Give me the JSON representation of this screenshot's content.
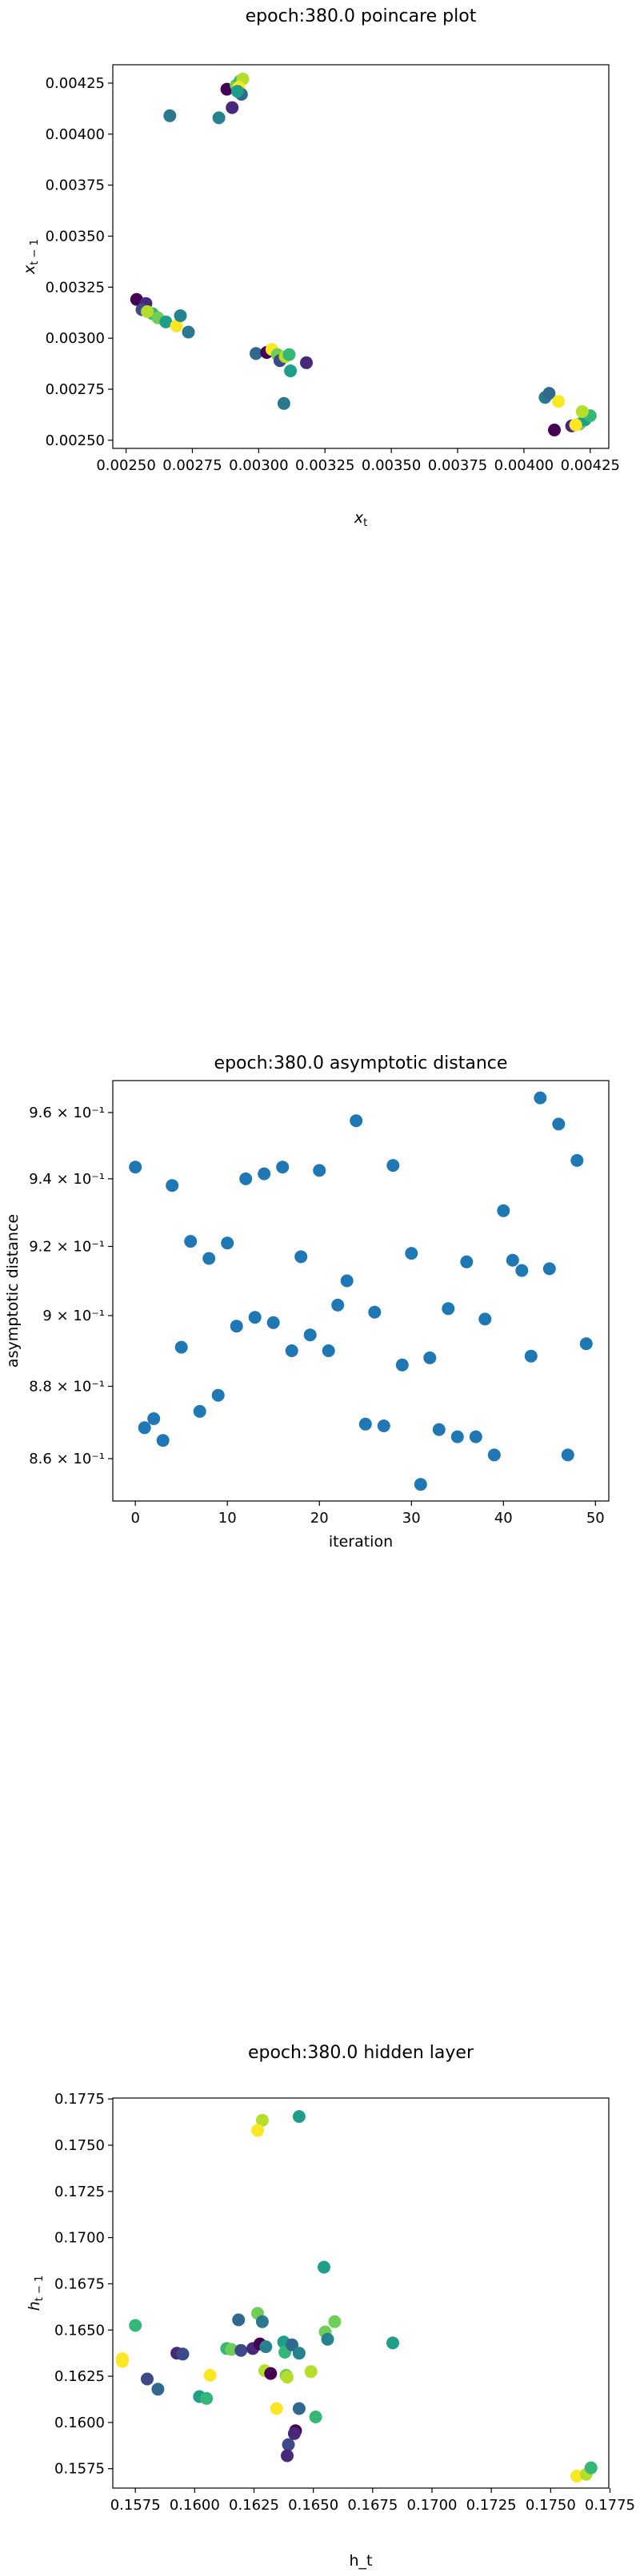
{
  "chart_data": [
    {
      "type": "scatter",
      "title": "epoch:380.0 poincare plot",
      "xlabel": "x_t",
      "ylabel": "x_{t-1}",
      "xlim": [
        0.00245,
        0.00432
      ],
      "ylim": [
        0.00246,
        0.00434
      ],
      "x_ticks": [
        0.0025,
        0.00275,
        0.003,
        0.00325,
        0.0035,
        0.00375,
        0.004,
        0.00425
      ],
      "x_tick_labels": [
        "0.00250",
        "0.00275",
        "0.00300",
        "0.00325",
        "0.00350",
        "0.00375",
        "0.00400",
        "0.00425"
      ],
      "y_ticks": [
        0.0025,
        0.00275,
        0.003,
        0.00325,
        0.0035,
        0.00375,
        0.004,
        0.00425
      ],
      "y_tick_labels": [
        "0.00250",
        "0.00275",
        "0.00300",
        "0.00325",
        "0.00350",
        "0.00375",
        "0.00400",
        "0.00425"
      ],
      "grid": false,
      "points": [
        {
          "x": 0.00254,
          "y": 0.00319,
          "color": "#440154"
        },
        {
          "x": 0.002575,
          "y": 0.00317,
          "color": "#482878"
        },
        {
          "x": 0.00256,
          "y": 0.00314,
          "color": "#3e4989"
        },
        {
          "x": 0.0026,
          "y": 0.00312,
          "color": "#35b779"
        },
        {
          "x": 0.00262,
          "y": 0.0031,
          "color": "#6ece58"
        },
        {
          "x": 0.00265,
          "y": 0.00308,
          "color": "#1f9e89"
        },
        {
          "x": 0.00258,
          "y": 0.00313,
          "color": "#b5de2b"
        },
        {
          "x": 0.00269,
          "y": 0.00306,
          "color": "#fde725"
        },
        {
          "x": 0.002705,
          "y": 0.00311,
          "color": "#26828e"
        },
        {
          "x": 0.002735,
          "y": 0.00303,
          "color": "#2a788e"
        },
        {
          "x": 0.002665,
          "y": 0.00409,
          "color": "#2a788e"
        },
        {
          "x": 0.00285,
          "y": 0.00408,
          "color": "#26828e"
        },
        {
          "x": 0.00288,
          "y": 0.00422,
          "color": "#440154"
        },
        {
          "x": 0.0029,
          "y": 0.00413,
          "color": "#482878"
        },
        {
          "x": 0.002915,
          "y": 0.00424,
          "color": "#6ece58"
        },
        {
          "x": 0.00293,
          "y": 0.00426,
          "color": "#35b779"
        },
        {
          "x": 0.00294,
          "y": 0.00427,
          "color": "#b5de2b"
        },
        {
          "x": 0.002925,
          "y": 0.00423,
          "color": "#fde725"
        },
        {
          "x": 0.002935,
          "y": 0.004195,
          "color": "#31688e"
        },
        {
          "x": 0.00292,
          "y": 0.00421,
          "color": "#1f9e89"
        },
        {
          "x": 0.00299,
          "y": 0.002925,
          "color": "#31688e"
        },
        {
          "x": 0.00303,
          "y": 0.00293,
          "color": "#440154"
        },
        {
          "x": 0.00305,
          "y": 0.002945,
          "color": "#fde725"
        },
        {
          "x": 0.00307,
          "y": 0.00292,
          "color": "#6ece58"
        },
        {
          "x": 0.00308,
          "y": 0.00289,
          "color": "#3e4989"
        },
        {
          "x": 0.0031,
          "y": 0.00291,
          "color": "#b5de2b"
        },
        {
          "x": 0.003115,
          "y": 0.00292,
          "color": "#35b779"
        },
        {
          "x": 0.00312,
          "y": 0.00284,
          "color": "#1f9e89"
        },
        {
          "x": 0.00318,
          "y": 0.00288,
          "color": "#482878"
        },
        {
          "x": 0.003095,
          "y": 0.00268,
          "color": "#2a788e"
        },
        {
          "x": 0.00408,
          "y": 0.00271,
          "color": "#2a788e"
        },
        {
          "x": 0.004095,
          "y": 0.00273,
          "color": "#31688e"
        },
        {
          "x": 0.00413,
          "y": 0.00269,
          "color": "#fde725"
        },
        {
          "x": 0.004115,
          "y": 0.00255,
          "color": "#440154"
        },
        {
          "x": 0.00418,
          "y": 0.00257,
          "color": "#482878"
        },
        {
          "x": 0.00421,
          "y": 0.00258,
          "color": "#6ece58"
        },
        {
          "x": 0.00423,
          "y": 0.0026,
          "color": "#1f9e89"
        },
        {
          "x": 0.00425,
          "y": 0.00262,
          "color": "#35b779"
        },
        {
          "x": 0.00422,
          "y": 0.00264,
          "color": "#b5de2b"
        },
        {
          "x": 0.004195,
          "y": 0.002575,
          "color": "#fde725"
        }
      ]
    },
    {
      "type": "scatter",
      "title": "epoch:380.0 asymptotic distance",
      "xlabel": "iteration",
      "ylabel": "asymptotic distance",
      "xlim": [
        -2.45,
        51.45
      ],
      "yscale": "log",
      "ylim": [
        0.8485,
        0.9698
      ],
      "x_ticks": [
        0,
        10,
        20,
        30,
        40,
        50
      ],
      "x_tick_labels": [
        "0",
        "10",
        "20",
        "30",
        "40",
        "50"
      ],
      "y_ticks": [
        0.86,
        0.88,
        0.9,
        0.92,
        0.94,
        0.96
      ],
      "y_tick_labels": [
        "8.6 × 10⁻¹",
        "8.8 × 10⁻¹",
        "9 × 10⁻¹",
        "9.2 × 10⁻¹",
        "9.4 × 10⁻¹",
        "9.6 × 10⁻¹"
      ],
      "grid": false,
      "color": "#1f77b4",
      "x": [
        0,
        1,
        2,
        3,
        4,
        5,
        6,
        7,
        8,
        9,
        10,
        11,
        12,
        13,
        14,
        15,
        16,
        17,
        18,
        19,
        20,
        21,
        22,
        23,
        24,
        25,
        26,
        27,
        28,
        29,
        30,
        31,
        32,
        33,
        34,
        35,
        36,
        37,
        38,
        39,
        40,
        41,
        42,
        43,
        44,
        45,
        46,
        47,
        48,
        49
      ],
      "values": [
        0.9435,
        0.8685,
        0.871,
        0.865,
        0.938,
        0.891,
        0.9215,
        0.873,
        0.9165,
        0.8775,
        0.921,
        0.897,
        0.94,
        0.8995,
        0.9415,
        0.898,
        0.9435,
        0.89,
        0.917,
        0.8945,
        0.9425,
        0.89,
        0.903,
        0.91,
        0.9575,
        0.8695,
        0.901,
        0.869,
        0.944,
        0.886,
        0.918,
        0.853,
        0.888,
        0.868,
        0.902,
        0.866,
        0.9155,
        0.866,
        0.899,
        0.861,
        0.9305,
        0.916,
        0.913,
        0.8885,
        0.9645,
        0.9135,
        0.9565,
        0.861,
        0.9455,
        0.892
      ]
    },
    {
      "type": "scatter",
      "title": "epoch:380.0 hidden layer",
      "xlabel": "h_t",
      "ylabel": "h_{t-1}",
      "xlim": [
        0.15655,
        0.17745
      ],
      "ylim": [
        0.15645,
        0.17755
      ],
      "x_ticks": [
        0.1575,
        0.16,
        0.1625,
        0.165,
        0.1675,
        0.17,
        0.1725,
        0.175,
        0.1775
      ],
      "x_tick_labels": [
        "0.1575",
        "0.1600",
        "0.1625",
        "0.1650",
        "0.1675",
        "0.1700",
        "0.1725",
        "0.1750",
        "0.1775"
      ],
      "y_ticks": [
        0.1575,
        0.16,
        0.1625,
        0.165,
        0.1675,
        0.17,
        0.1725,
        0.175,
        0.1775
      ],
      "y_tick_labels": [
        "0.1575",
        "0.1600",
        "0.1625",
        "0.1650",
        "0.1675",
        "0.1700",
        "0.1725",
        "0.1750",
        "0.1775"
      ],
      "grid": false,
      "points": [
        {
          "x": 0.15695,
          "y": 0.16345,
          "color": "#fde725"
        },
        {
          "x": 0.15695,
          "y": 0.1633,
          "color": "#fde725"
        },
        {
          "x": 0.1575,
          "y": 0.16525,
          "color": "#35b779"
        },
        {
          "x": 0.158,
          "y": 0.16235,
          "color": "#3e4989"
        },
        {
          "x": 0.15845,
          "y": 0.1618,
          "color": "#31688e"
        },
        {
          "x": 0.15925,
          "y": 0.16375,
          "color": "#482878"
        },
        {
          "x": 0.1595,
          "y": 0.1637,
          "color": "#3e4989"
        },
        {
          "x": 0.1602,
          "y": 0.1614,
          "color": "#1f9e89"
        },
        {
          "x": 0.1605,
          "y": 0.1613,
          "color": "#35b779"
        },
        {
          "x": 0.16065,
          "y": 0.16255,
          "color": "#fde725"
        },
        {
          "x": 0.16135,
          "y": 0.164,
          "color": "#35b779"
        },
        {
          "x": 0.16155,
          "y": 0.16395,
          "color": "#6ece58"
        },
        {
          "x": 0.16185,
          "y": 0.16555,
          "color": "#31688e"
        },
        {
          "x": 0.16195,
          "y": 0.1639,
          "color": "#3e4989"
        },
        {
          "x": 0.16245,
          "y": 0.164,
          "color": "#482878"
        },
        {
          "x": 0.16265,
          "y": 0.1659,
          "color": "#6ece58"
        },
        {
          "x": 0.16275,
          "y": 0.16425,
          "color": "#440154"
        },
        {
          "x": 0.16285,
          "y": 0.16545,
          "color": "#2a788e"
        },
        {
          "x": 0.16295,
          "y": 0.1628,
          "color": "#b5de2b"
        },
        {
          "x": 0.163,
          "y": 0.1641,
          "color": "#26828e"
        },
        {
          "x": 0.1632,
          "y": 0.16265,
          "color": "#440154"
        },
        {
          "x": 0.16345,
          "y": 0.16075,
          "color": "#fde725"
        },
        {
          "x": 0.16375,
          "y": 0.16435,
          "color": "#1f9e89"
        },
        {
          "x": 0.1638,
          "y": 0.1638,
          "color": "#35b779"
        },
        {
          "x": 0.16385,
          "y": 0.16255,
          "color": "#6ece58"
        },
        {
          "x": 0.1639,
          "y": 0.16245,
          "color": "#b5de2b"
        },
        {
          "x": 0.16395,
          "y": 0.1588,
          "color": "#3e4989"
        },
        {
          "x": 0.1639,
          "y": 0.1582,
          "color": "#482878"
        },
        {
          "x": 0.1641,
          "y": 0.1642,
          "color": "#31688e"
        },
        {
          "x": 0.16425,
          "y": 0.15955,
          "color": "#440154"
        },
        {
          "x": 0.1642,
          "y": 0.1594,
          "color": "#482878"
        },
        {
          "x": 0.1644,
          "y": 0.16375,
          "color": "#26828e"
        },
        {
          "x": 0.1644,
          "y": 0.16075,
          "color": "#31688e"
        },
        {
          "x": 0.1644,
          "y": 0.17655,
          "color": "#1f9e89"
        },
        {
          "x": 0.16285,
          "y": 0.17635,
          "color": "#b5de2b"
        },
        {
          "x": 0.16265,
          "y": 0.1758,
          "color": "#fde725"
        },
        {
          "x": 0.1649,
          "y": 0.16275,
          "color": "#b5de2b"
        },
        {
          "x": 0.1651,
          "y": 0.1603,
          "color": "#35b779"
        },
        {
          "x": 0.16545,
          "y": 0.1684,
          "color": "#1f9e89"
        },
        {
          "x": 0.1655,
          "y": 0.1649,
          "color": "#6ece58"
        },
        {
          "x": 0.1656,
          "y": 0.1645,
          "color": "#26828e"
        },
        {
          "x": 0.1659,
          "y": 0.16545,
          "color": "#6ece58"
        },
        {
          "x": 0.16835,
          "y": 0.1643,
          "color": "#1f9e89"
        },
        {
          "x": 0.1761,
          "y": 0.1571,
          "color": "#fde725"
        },
        {
          "x": 0.1765,
          "y": 0.1572,
          "color": "#b5de2b"
        },
        {
          "x": 0.1767,
          "y": 0.15755,
          "color": "#35b779"
        }
      ]
    }
  ]
}
